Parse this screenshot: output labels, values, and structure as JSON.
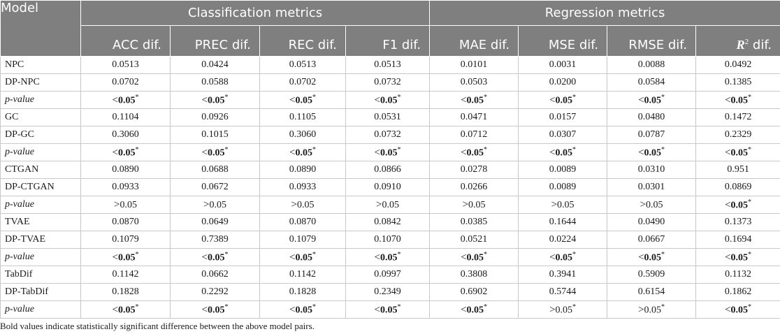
{
  "table": {
    "model_header": "Model",
    "groups": [
      {
        "label": "Classification metrics"
      },
      {
        "label": "Regression metrics"
      }
    ],
    "columns": [
      "ACC dif.",
      "PREC dif.",
      "REC dif.",
      "F1 dif.",
      "MAE dif.",
      "MSE dif.",
      "RMSE dif.",
      "dif."
    ],
    "r2_symbol": "R",
    "r2_sup": "2",
    "rows": [
      {
        "name": "NPC",
        "type": "value",
        "cells": [
          "0.0513",
          "0.0424",
          "0.0513",
          "0.0513",
          "0.0101",
          "0.0031",
          "0.0088",
          "0.0492"
        ]
      },
      {
        "name": "DP-NPC",
        "type": "value",
        "cells": [
          "0.0702",
          "0.0588",
          "0.0702",
          "0.0732",
          "0.0503",
          "0.0200",
          "0.0584",
          "0.1385"
        ]
      },
      {
        "name": "p-value",
        "type": "p",
        "cells": [
          {
            "sym": "<",
            "val": "0.05",
            "bold": true
          },
          {
            "sym": "<",
            "val": "0.05",
            "bold": true
          },
          {
            "sym": "<",
            "val": "0.05",
            "bold": true
          },
          {
            "sym": "<",
            "val": "0.05",
            "bold": true
          },
          {
            "sym": "<",
            "val": "0.05",
            "bold": true
          },
          {
            "sym": "<",
            "val": "0.05",
            "bold": true
          },
          {
            "sym": "<",
            "val": "0.05",
            "bold": true
          },
          {
            "sym": "<",
            "val": "0.05",
            "bold": true
          }
        ]
      },
      {
        "name": "GC",
        "type": "value",
        "cells": [
          "0.1104",
          "0.0926",
          "0.1105",
          "0.0531",
          "0.0471",
          "0.0157",
          "0.0480",
          "0.1472"
        ]
      },
      {
        "name": "DP-GC",
        "type": "value",
        "cells": [
          "0.3060",
          "0.1015",
          "0.3060",
          "0.0732",
          "0.0712",
          "0.0307",
          "0.0787",
          "0.2329"
        ]
      },
      {
        "name": "p-value",
        "type": "p",
        "cells": [
          {
            "sym": "<",
            "val": "0.05",
            "bold": true
          },
          {
            "sym": "<",
            "val": "0.05",
            "bold": true
          },
          {
            "sym": "<",
            "val": "0.05",
            "bold": true
          },
          {
            "sym": "<",
            "val": "0.05",
            "bold": true
          },
          {
            "sym": "<",
            "val": "0.05",
            "bold": true
          },
          {
            "sym": "<",
            "val": "0.05",
            "bold": true
          },
          {
            "sym": "<",
            "val": "0.05",
            "bold": true
          },
          {
            "sym": "<",
            "val": "0.05",
            "bold": true
          }
        ]
      },
      {
        "name": "CTGAN",
        "type": "value",
        "cells": [
          "0.0890",
          "0.0688",
          "0.0890",
          "0.0866",
          "0.0278",
          "0.0089",
          "0.0310",
          "0.951"
        ]
      },
      {
        "name": "DP-CTGAN",
        "type": "value",
        "cells": [
          "0.0933",
          "0.0672",
          "0.0933",
          "0.0910",
          "0.0266",
          "0.0089",
          "0.0301",
          "0.0869"
        ]
      },
      {
        "name": "p-value",
        "type": "p",
        "cells": [
          {
            "sym": ">",
            "val": "0.05",
            "bold": false
          },
          {
            "sym": ">",
            "val": "0.05",
            "bold": false
          },
          {
            "sym": ">",
            "val": "0.05",
            "bold": false
          },
          {
            "sym": ">",
            "val": "0.05",
            "bold": false
          },
          {
            "sym": ">",
            "val": "0.05",
            "bold": false
          },
          {
            "sym": ">",
            "val": "0.05",
            "bold": false
          },
          {
            "sym": ">",
            "val": "0.05",
            "bold": false
          },
          {
            "sym": "<",
            "val": "0.05",
            "bold": true
          }
        ]
      },
      {
        "name": "TVAE",
        "type": "value",
        "cells": [
          "0.0870",
          "0.0649",
          "0.0870",
          "0.0842",
          "0.0385",
          "0.1644",
          "0.0490",
          "0.1373"
        ]
      },
      {
        "name": "DP-TVAE",
        "type": "value",
        "cells": [
          "0.1079",
          "0.7389",
          "0.1079",
          "0.1070",
          "0.0521",
          "0.0224",
          "0.0667",
          "0.1694"
        ]
      },
      {
        "name": "p-value",
        "type": "p",
        "cells": [
          {
            "sym": "<",
            "val": "0.05",
            "bold": true
          },
          {
            "sym": "<",
            "val": "0.05",
            "bold": true
          },
          {
            "sym": "<",
            "val": "0.05",
            "bold": true
          },
          {
            "sym": "<",
            "val": "0.05",
            "bold": true
          },
          {
            "sym": "<",
            "val": "0.05",
            "bold": true
          },
          {
            "sym": "<",
            "val": "0.05",
            "bold": true
          },
          {
            "sym": "<",
            "val": "0.05",
            "bold": true
          },
          {
            "sym": "<",
            "val": "0.05",
            "bold": true
          }
        ]
      },
      {
        "name": "TabDif",
        "type": "value",
        "cells": [
          "0.1142",
          "0.0662",
          "0.1142",
          "0.0997",
          "0.3808",
          "0.3941",
          "0.5909",
          "0.1132"
        ]
      },
      {
        "name": "DP-TabDif",
        "type": "value",
        "cells": [
          "0.1828",
          "0.2292",
          "0.1828",
          "0.2349",
          "0.6902",
          "0.5744",
          "0.6154",
          "0.1862"
        ]
      },
      {
        "name": "p-value",
        "type": "p",
        "cells": [
          {
            "sym": "<",
            "val": "0.05",
            "bold": true
          },
          {
            "sym": "<",
            "val": "0.05",
            "bold": true
          },
          {
            "sym": "<",
            "val": "0.05",
            "bold": true
          },
          {
            "sym": "<",
            "val": "0.05",
            "bold": true
          },
          {
            "sym": "<",
            "val": "0.05",
            "bold": true
          },
          {
            "sym": ">",
            "val": "0.05",
            "bold": false,
            "star": true
          },
          {
            "sym": ">",
            "val": "0.05",
            "bold": false,
            "star": true
          },
          {
            "sym": "<",
            "val": "0.05",
            "bold": true
          }
        ]
      }
    ]
  },
  "footnote": "Bold values indicate statistically significant difference between the above model pairs.",
  "star_mark": "*"
}
